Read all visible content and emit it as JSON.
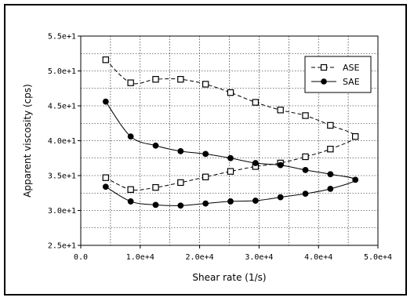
{
  "chart_data": {
    "type": "line",
    "xlabel": "Shear rate (1/s)",
    "ylabel": "Apparent viscosity (cps)",
    "xlim": [
      0,
      50000
    ],
    "ylim": [
      25,
      55
    ],
    "x_ticks": [
      0,
      10000,
      20000,
      30000,
      40000,
      50000
    ],
    "x_tick_labels": [
      "0.0",
      "1.0e+4",
      "2.0e+4",
      "3.0e+4",
      "4.0e+4",
      "5.0e+4"
    ],
    "y_ticks": [
      25,
      30,
      35,
      40,
      45,
      50,
      55
    ],
    "y_tick_labels": [
      "2.5e+1",
      "3.0e+1",
      "3.5e+1",
      "4.0e+1",
      "4.5e+1",
      "5.0e+1",
      "5.5e+1"
    ],
    "grid": true,
    "legend_position": "top-right",
    "series": [
      {
        "name": "ASE",
        "marker": "open-square",
        "line_style": "dashed",
        "color": "#000000",
        "x": [
          4200,
          8400,
          12600,
          16800,
          21000,
          25200,
          29400,
          33600,
          37800,
          42000,
          46200,
          42000,
          37800,
          33600,
          29400,
          25200,
          21000,
          16800,
          12600,
          8400,
          4200
        ],
        "y": [
          51.6,
          48.3,
          48.8,
          48.8,
          48.1,
          46.9,
          45.5,
          44.4,
          43.6,
          42.2,
          40.6,
          38.8,
          37.7,
          36.8,
          36.3,
          35.6,
          34.8,
          34.0,
          33.3,
          33.0,
          34.7
        ]
      },
      {
        "name": "SAE",
        "marker": "filled-circle",
        "line_style": "solid",
        "color": "#000000",
        "x": [
          4200,
          8400,
          12600,
          16800,
          21000,
          25200,
          29400,
          33600,
          37800,
          42000,
          46200,
          42000,
          37800,
          33600,
          29400,
          25200,
          21000,
          16800,
          12600,
          8400,
          4200
        ],
        "y": [
          45.6,
          40.6,
          39.3,
          38.5,
          38.1,
          37.5,
          36.8,
          36.5,
          35.8,
          35.2,
          34.4,
          33.1,
          32.4,
          31.9,
          31.4,
          31.3,
          31.0,
          30.7,
          30.8,
          31.3,
          33.4
        ]
      }
    ]
  }
}
